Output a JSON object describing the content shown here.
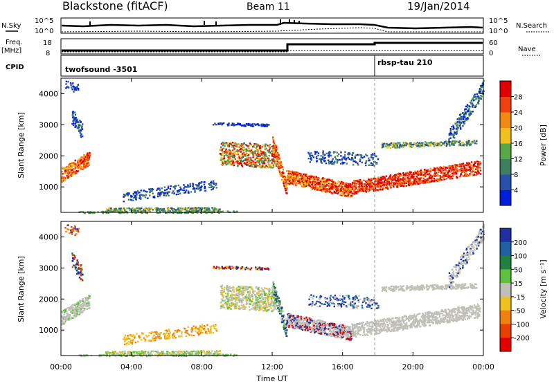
{
  "header": {
    "station": "Blackstone (fitACF)",
    "beam": "Beam 11",
    "date": "19/Jan/2014"
  },
  "noise_panel": {
    "left_label": "N.Sky",
    "right_label": "N.Search",
    "left_ticks": [
      "10^5",
      "10^0"
    ],
    "right_ticks": [
      "10^5",
      "10^0"
    ]
  },
  "freq_panel": {
    "left_label_1": "Freq.",
    "left_label_2": "[MHz]",
    "left_ticks": [
      "18",
      "8"
    ],
    "right_label": "Nave",
    "right_ticks": [
      "60",
      "0"
    ]
  },
  "cpid_panel": {
    "label": "CPID",
    "programs": [
      {
        "name": "twofsound -3501",
        "start_hour": 0
      },
      {
        "name": "rbsp-tau 210",
        "start_hour": 18
      }
    ]
  },
  "time_axis": {
    "label": "Time UT",
    "ticks": [
      "00:00",
      "04:00",
      "08:00",
      "12:00",
      "16:00",
      "20:00",
      "00:00"
    ]
  },
  "colors": {
    "power_scale": [
      "#0020d8",
      "#2a4fa8",
      "#3f7f5f",
      "#58a848",
      "#f0c020",
      "#f08a10",
      "#f04010",
      "#e00000"
    ],
    "velocity_scale": [
      "#2030a0",
      "#2060a0",
      "#208040",
      "#60c040",
      "#c0c0b8",
      "#f0c020",
      "#f08010",
      "#e84000",
      "#e00000"
    ]
  },
  "chart_data": [
    {
      "type": "heatmap",
      "title": "",
      "xlabel": "Time UT",
      "ylabel": "Slant Range [km]",
      "xlim": [
        0,
        24
      ],
      "ylim": [
        180,
        4500
      ],
      "yticks": [
        1000,
        2000,
        3000,
        4000
      ],
      "colorbar": {
        "label": "Power [dB]",
        "ticks": [
          "4",
          "8",
          "12",
          "16",
          "20",
          "24",
          "28"
        ],
        "range": [
          0,
          30
        ]
      }
    },
    {
      "type": "heatmap",
      "title": "",
      "xlabel": "Time UT",
      "ylabel": "Slant Range [km]",
      "xlim": [
        0,
        24
      ],
      "ylim": [
        180,
        4500
      ],
      "yticks": [
        1000,
        2000,
        3000,
        4000
      ],
      "colorbar": {
        "label": "Velocity [m s⁻¹]",
        "ticks": [
          "200",
          "100",
          "50",
          "15",
          "-15",
          "-50",
          "-100",
          "-200"
        ],
        "range": [
          -250,
          250
        ]
      }
    }
  ]
}
